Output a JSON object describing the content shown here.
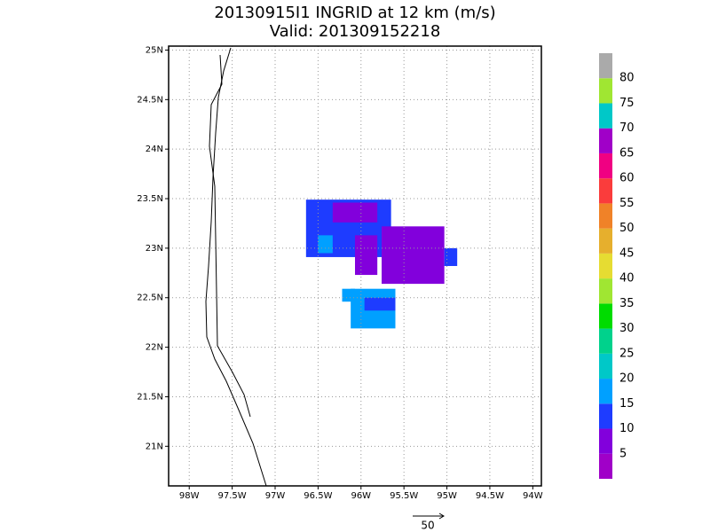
{
  "map": {
    "title": "20130915I1 INGRID at 12 km (m/s)",
    "subtitle": "Valid: 201309152218",
    "xlim": [
      98.24,
      93.9
    ],
    "ylim": [
      20.6,
      25.04
    ],
    "xticks": [
      {
        "value": 98,
        "label": "98W"
      },
      {
        "value": 97.5,
        "label": "97.5W"
      },
      {
        "value": 97,
        "label": "97W"
      },
      {
        "value": 96.5,
        "label": "96.5W"
      },
      {
        "value": 96,
        "label": "96W"
      },
      {
        "value": 95.5,
        "label": "95.5W"
      },
      {
        "value": 95,
        "label": "95W"
      },
      {
        "value": 94.5,
        "label": "94.5W"
      },
      {
        "value": 94,
        "label": "94W"
      }
    ],
    "yticks": [
      {
        "value": 21,
        "label": "21N"
      },
      {
        "value": 21.5,
        "label": "21.5N"
      },
      {
        "value": 22,
        "label": "22N"
      },
      {
        "value": 22.5,
        "label": "22.5N"
      },
      {
        "value": 23,
        "label": "23N"
      },
      {
        "value": 23.5,
        "label": "23.5N"
      },
      {
        "value": 24,
        "label": "24N"
      },
      {
        "value": 24.5,
        "label": "24.5N"
      },
      {
        "value": 25,
        "label": "25N"
      }
    ],
    "colorbar": {
      "bounds": [
        0,
        85
      ],
      "colors": [
        "#a000c8",
        "#8200dc",
        "#1e3cff",
        "#00a0ff",
        "#00c8c8",
        "#00d28c",
        "#00dc00",
        "#a0e632",
        "#e6dc32",
        "#e6af2d",
        "#f08228",
        "#fa3c3c",
        "#f00082",
        "#a000c8",
        "#00c8c8",
        "#a0e632",
        "#aaaaaa"
      ],
      "ticks": [
        5,
        10,
        15,
        20,
        25,
        30,
        35,
        40,
        45,
        50,
        55,
        60,
        65,
        70,
        75,
        80
      ]
    },
    "patches": [
      {
        "lon": [
          96.64,
          95.65
        ],
        "lat": [
          22.91,
          23.49
        ],
        "speed": 12
      },
      {
        "lon": [
          96.33,
          95.81
        ],
        "lat": [
          23.26,
          23.46
        ],
        "speed": 7
      },
      {
        "lon": [
          95.76,
          95.03
        ],
        "lat": [
          22.64,
          23.22
        ],
        "speed": 7
      },
      {
        "lon": [
          95.03,
          94.88
        ],
        "lat": [
          22.82,
          23.0
        ],
        "speed": 12
      },
      {
        "lon": [
          96.07,
          95.81
        ],
        "lat": [
          22.73,
          23.13
        ],
        "speed": 7
      },
      {
        "lon": [
          96.5,
          96.33
        ],
        "lat": [
          22.95,
          23.13
        ],
        "speed": 17
      },
      {
        "lon": [
          96.12,
          95.6
        ],
        "lat": [
          22.19,
          22.59
        ],
        "speed": 17
      },
      {
        "lon": [
          95.96,
          95.6
        ],
        "lat": [
          22.37,
          22.5
        ],
        "speed": 12
      },
      {
        "lon": [
          96.22,
          96.07
        ],
        "lat": [
          22.46,
          22.59
        ],
        "speed": 17
      }
    ],
    "vector_scale": 50
  }
}
